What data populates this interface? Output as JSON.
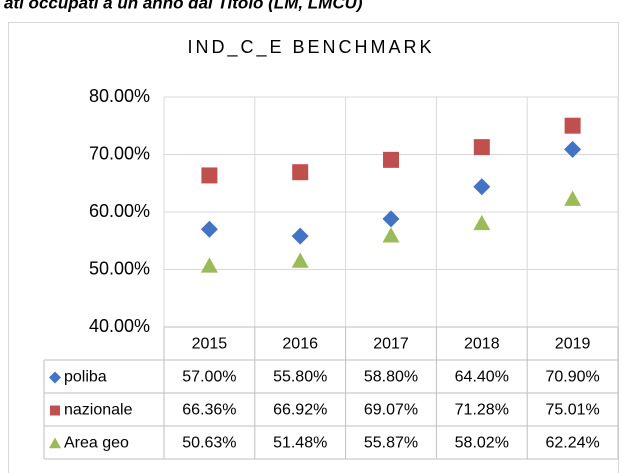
{
  "heading": "ati occupati a un anno dal Titolo (LM, LMCU)",
  "chart_data": {
    "type": "scatter",
    "title": "IND_C_E BENCHMARK",
    "categories": [
      "2015",
      "2016",
      "2017",
      "2018",
      "2019"
    ],
    "series": [
      {
        "name": "poliba",
        "color": "#4472c4",
        "marker": "diamond",
        "values": [
          57.0,
          55.8,
          58.8,
          64.4,
          70.9
        ],
        "value_labels": [
          "57.00%",
          "55.80%",
          "58.80%",
          "64.40%",
          "70.90%"
        ]
      },
      {
        "name": "nazionale",
        "color": "#c0504d",
        "marker": "square",
        "values": [
          66.36,
          66.92,
          69.07,
          71.28,
          75.01
        ],
        "value_labels": [
          "66.36%",
          "66.92%",
          "69.07%",
          "71.28%",
          "75.01%"
        ]
      },
      {
        "name": "Area geo",
        "color": "#9bbb59",
        "marker": "triangle",
        "values": [
          50.63,
          51.48,
          55.87,
          58.02,
          62.24
        ],
        "value_labels": [
          "50.63%",
          "51.48%",
          "55.87%",
          "58.02%",
          "62.24%"
        ]
      }
    ],
    "ylim": [
      40,
      80
    ],
    "yticks": [
      {
        "value": 40,
        "label": "40.00%"
      },
      {
        "value": 50,
        "label": "50.00%"
      },
      {
        "value": 60,
        "label": "60.00%"
      },
      {
        "value": 70,
        "label": "70.00%"
      },
      {
        "value": 80,
        "label": "80.00%"
      }
    ],
    "grid": true
  }
}
